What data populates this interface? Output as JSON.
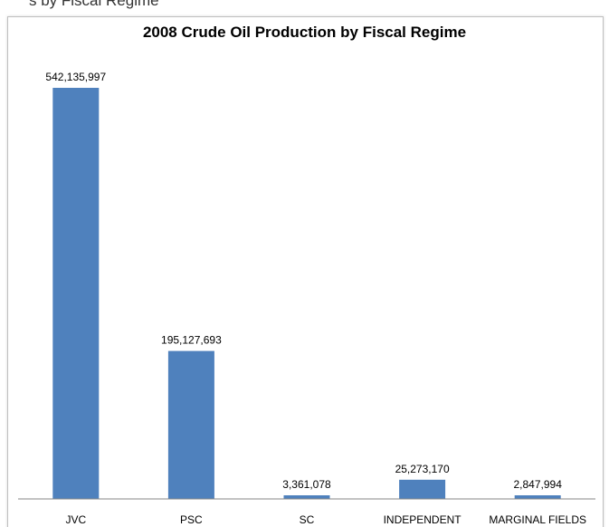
{
  "header": {
    "partial_text": "s by Fiscal Regime"
  },
  "chart_data": {
    "type": "bar",
    "title": "2008 Crude Oil Production by Fiscal Regime",
    "categories": [
      "JVC",
      "PSC",
      "SC",
      "INDEPENDENT",
      "MARGINAL FIELDS"
    ],
    "values": [
      542135997,
      195127693,
      3361078,
      25273170,
      2847994
    ],
    "value_labels": [
      "542,135,997",
      "195,127,693",
      "3,361,078",
      "25,273,170",
      "2,847,994"
    ],
    "bar_color": "#4f81bd",
    "ylim": [
      0,
      542135997
    ],
    "grid": false,
    "legend": "none"
  }
}
